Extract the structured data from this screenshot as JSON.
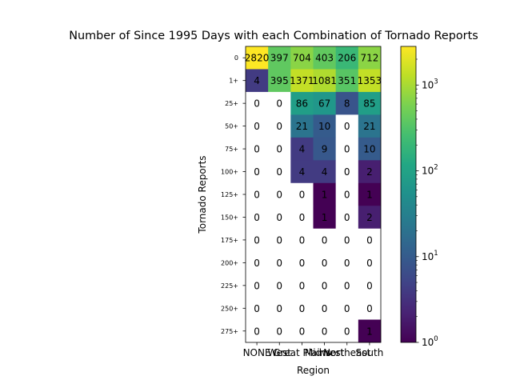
{
  "chart_data": {
    "type": "heatmap",
    "title": "Number of Since 1995 Days with each Combination of Tornado Reports",
    "xlabel": "Region",
    "ylabel": "Tornado Reports",
    "x_categories": [
      "NONE",
      "West",
      "Great Plains",
      "Midwest",
      "Northeast",
      "South"
    ],
    "y_categories": [
      "0",
      "1+",
      "25+",
      "50+",
      "75+",
      "100+",
      "125+",
      "150+",
      "175+",
      "200+",
      "225+",
      "250+",
      "275+"
    ],
    "values": [
      [
        2820,
        397,
        704,
        403,
        206,
        712
      ],
      [
        4,
        395,
        1371,
        1081,
        351,
        1353
      ],
      [
        0,
        0,
        86,
        67,
        8,
        85
      ],
      [
        0,
        0,
        21,
        10,
        0,
        21
      ],
      [
        0,
        0,
        4,
        9,
        0,
        10
      ],
      [
        0,
        0,
        4,
        4,
        0,
        2
      ],
      [
        0,
        0,
        0,
        1,
        0,
        1
      ],
      [
        0,
        0,
        0,
        1,
        0,
        2
      ],
      [
        0,
        0,
        0,
        0,
        0,
        0
      ],
      [
        0,
        0,
        0,
        0,
        0,
        0
      ],
      [
        0,
        0,
        0,
        0,
        0,
        0
      ],
      [
        0,
        0,
        0,
        0,
        0,
        0
      ],
      [
        0,
        0,
        0,
        0,
        0,
        1
      ]
    ],
    "colorscale": "viridis",
    "color_scale_type": "log",
    "color_range": [
      1,
      2820
    ],
    "colorbar_ticks": [
      {
        "base": "10",
        "exp": "0",
        "value": 1
      },
      {
        "base": "10",
        "exp": "1",
        "value": 10
      },
      {
        "base": "10",
        "exp": "2",
        "value": 100
      },
      {
        "base": "10",
        "exp": "3",
        "value": 1000
      }
    ],
    "zero_cell_color": "#ffffff",
    "grid": false,
    "legend": "colorbar-right"
  }
}
